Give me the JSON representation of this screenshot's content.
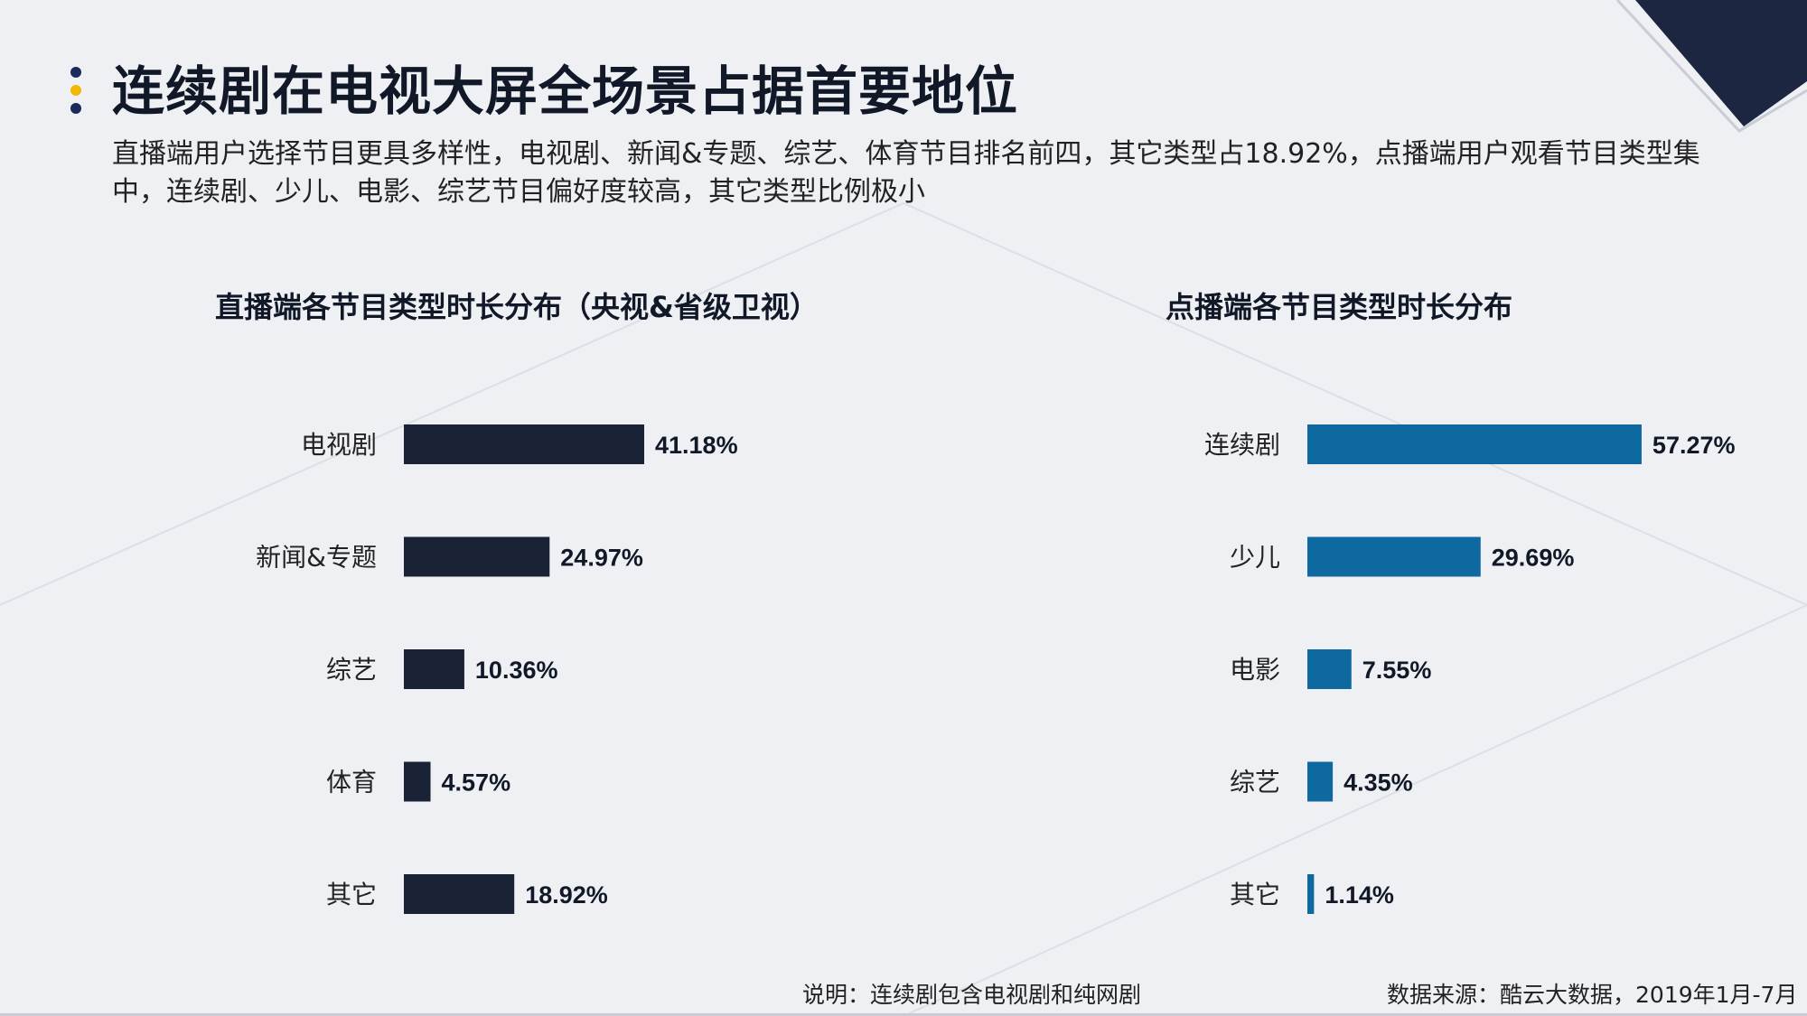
{
  "title": "连续剧在电视大屏全场景占据首要地位",
  "subtitle": "直播端用户选择节目更具多样性，电视剧、新闻&专题、综艺、体育节目排名前四，其它类型占18.92%，点播端用户观看节目类型集中，连续剧、少儿、电影、综艺节目偏好度较高，其它类型比例极小",
  "colors": {
    "dark_navy": "#1a2236",
    "blue": "#0f69a1",
    "dot_navy": "#1a2a5a",
    "dot_yellow": "#f2b705"
  },
  "footnote": "说明：连续剧包含电视剧和纯网剧",
  "source": "数据来源：酷云大数据，2019年1月-7月",
  "chart_data": [
    {
      "type": "bar",
      "orientation": "horizontal",
      "title": "直播端各节目类型时长分布（央视&省级卫视）",
      "categories": [
        "电视剧",
        "新闻&专题",
        "综艺",
        "体育",
        "其它"
      ],
      "values": [
        41.18,
        24.97,
        10.36,
        4.57,
        18.92
      ],
      "value_labels": [
        "41.18%",
        "24.97%",
        "10.36%",
        "4.57%",
        "18.92%"
      ],
      "unit": "%",
      "color": "#1a2236",
      "xlim": [
        0,
        100
      ]
    },
    {
      "type": "bar",
      "orientation": "horizontal",
      "title": "点播端各节目类型时长分布",
      "categories": [
        "连续剧",
        "少儿",
        "电影",
        "综艺",
        "其它"
      ],
      "values": [
        57.27,
        29.69,
        7.55,
        4.35,
        1.14
      ],
      "value_labels": [
        "57.27%",
        "29.69%",
        "7.55%",
        "4.35%",
        "1.14%"
      ],
      "unit": "%",
      "color": "#0f69a1",
      "xlim": [
        0,
        100
      ]
    }
  ]
}
